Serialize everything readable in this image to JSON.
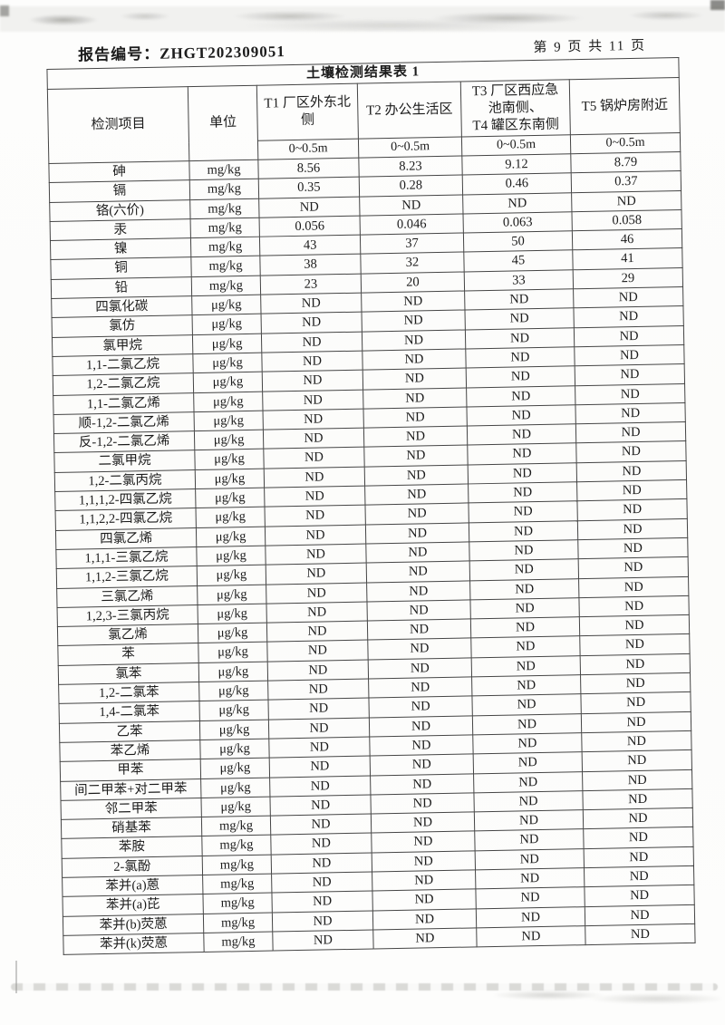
{
  "page": {
    "report_label": "报告编号：ZHGT202309051",
    "page_info": "第 9 页 共 11 页"
  },
  "table": {
    "title": "土壤检测结果表 1",
    "header": {
      "item": "检测项目",
      "unit": "单位",
      "locations": [
        "T1 厂区外东北\n侧",
        "T2 办公生活区",
        "T3 厂区西应急\n池南侧、\nT4 罐区东南侧",
        "T5 锅炉房附近"
      ],
      "depth": "0~0.5m"
    },
    "rows": [
      {
        "item": "砷",
        "unit": "mg/kg",
        "values": [
          "8.56",
          "8.23",
          "9.12",
          "8.79"
        ]
      },
      {
        "item": "镉",
        "unit": "mg/kg",
        "values": [
          "0.35",
          "0.28",
          "0.46",
          "0.37"
        ]
      },
      {
        "item": "铬(六价)",
        "unit": "mg/kg",
        "values": [
          "ND",
          "ND",
          "ND",
          "ND"
        ]
      },
      {
        "item": "汞",
        "unit": "mg/kg",
        "values": [
          "0.056",
          "0.046",
          "0.063",
          "0.058"
        ]
      },
      {
        "item": "镍",
        "unit": "mg/kg",
        "values": [
          "43",
          "37",
          "50",
          "46"
        ]
      },
      {
        "item": "铜",
        "unit": "mg/kg",
        "values": [
          "38",
          "32",
          "45",
          "41"
        ]
      },
      {
        "item": "铅",
        "unit": "mg/kg",
        "values": [
          "23",
          "20",
          "33",
          "29"
        ]
      },
      {
        "item": "四氯化碳",
        "unit": "μg/kg",
        "values": [
          "ND",
          "ND",
          "ND",
          "ND"
        ]
      },
      {
        "item": "氯仿",
        "unit": "μg/kg",
        "values": [
          "ND",
          "ND",
          "ND",
          "ND"
        ]
      },
      {
        "item": "氯甲烷",
        "unit": "μg/kg",
        "values": [
          "ND",
          "ND",
          "ND",
          "ND"
        ]
      },
      {
        "item": "1,1-二氯乙烷",
        "unit": "μg/kg",
        "values": [
          "ND",
          "ND",
          "ND",
          "ND"
        ]
      },
      {
        "item": "1,2-二氯乙烷",
        "unit": "μg/kg",
        "values": [
          "ND",
          "ND",
          "ND",
          "ND"
        ]
      },
      {
        "item": "1,1-二氯乙烯",
        "unit": "μg/kg",
        "values": [
          "ND",
          "ND",
          "ND",
          "ND"
        ]
      },
      {
        "item": "顺-1,2-二氯乙烯",
        "unit": "μg/kg",
        "values": [
          "ND",
          "ND",
          "ND",
          "ND"
        ]
      },
      {
        "item": "反-1,2-二氯乙烯",
        "unit": "μg/kg",
        "values": [
          "ND",
          "ND",
          "ND",
          "ND"
        ]
      },
      {
        "item": "二氯甲烷",
        "unit": "μg/kg",
        "values": [
          "ND",
          "ND",
          "ND",
          "ND"
        ]
      },
      {
        "item": "1,2-二氯丙烷",
        "unit": "μg/kg",
        "values": [
          "ND",
          "ND",
          "ND",
          "ND"
        ]
      },
      {
        "item": "1,1,1,2-四氯乙烷",
        "unit": "μg/kg",
        "values": [
          "ND",
          "ND",
          "ND",
          "ND"
        ]
      },
      {
        "item": "1,1,2,2-四氯乙烷",
        "unit": "μg/kg",
        "values": [
          "ND",
          "ND",
          "ND",
          "ND"
        ]
      },
      {
        "item": "四氯乙烯",
        "unit": "μg/kg",
        "values": [
          "ND",
          "ND",
          "ND",
          "ND"
        ]
      },
      {
        "item": "1,1,1-三氯乙烷",
        "unit": "μg/kg",
        "values": [
          "ND",
          "ND",
          "ND",
          "ND"
        ]
      },
      {
        "item": "1,1,2-三氯乙烷",
        "unit": "μg/kg",
        "values": [
          "ND",
          "ND",
          "ND",
          "ND"
        ]
      },
      {
        "item": "三氯乙烯",
        "unit": "μg/kg",
        "values": [
          "ND",
          "ND",
          "ND",
          "ND"
        ]
      },
      {
        "item": "1,2,3-三氯丙烷",
        "unit": "μg/kg",
        "values": [
          "ND",
          "ND",
          "ND",
          "ND"
        ]
      },
      {
        "item": "氯乙烯",
        "unit": "μg/kg",
        "values": [
          "ND",
          "ND",
          "ND",
          "ND"
        ]
      },
      {
        "item": "苯",
        "unit": "μg/kg",
        "values": [
          "ND",
          "ND",
          "ND",
          "ND"
        ]
      },
      {
        "item": "氯苯",
        "unit": "μg/kg",
        "values": [
          "ND",
          "ND",
          "ND",
          "ND"
        ]
      },
      {
        "item": "1,2-二氯苯",
        "unit": "μg/kg",
        "values": [
          "ND",
          "ND",
          "ND",
          "ND"
        ]
      },
      {
        "item": "1,4-二氯苯",
        "unit": "μg/kg",
        "values": [
          "ND",
          "ND",
          "ND",
          "ND"
        ]
      },
      {
        "item": "乙苯",
        "unit": "μg/kg",
        "values": [
          "ND",
          "ND",
          "ND",
          "ND"
        ]
      },
      {
        "item": "苯乙烯",
        "unit": "μg/kg",
        "values": [
          "ND",
          "ND",
          "ND",
          "ND"
        ]
      },
      {
        "item": "甲苯",
        "unit": "μg/kg",
        "values": [
          "ND",
          "ND",
          "ND",
          "ND"
        ]
      },
      {
        "item": "间二甲苯+对二甲苯",
        "unit": "μg/kg",
        "values": [
          "ND",
          "ND",
          "ND",
          "ND"
        ]
      },
      {
        "item": "邻二甲苯",
        "unit": "μg/kg",
        "values": [
          "ND",
          "ND",
          "ND",
          "ND"
        ]
      },
      {
        "item": "硝基苯",
        "unit": "mg/kg",
        "values": [
          "ND",
          "ND",
          "ND",
          "ND"
        ]
      },
      {
        "item": "苯胺",
        "unit": "mg/kg",
        "values": [
          "ND",
          "ND",
          "ND",
          "ND"
        ]
      },
      {
        "item": "2-氯酚",
        "unit": "mg/kg",
        "values": [
          "ND",
          "ND",
          "ND",
          "ND"
        ]
      },
      {
        "item": "苯并(a)蒽",
        "unit": "mg/kg",
        "values": [
          "ND",
          "ND",
          "ND",
          "ND"
        ]
      },
      {
        "item": "苯并(a)芘",
        "unit": "mg/kg",
        "values": [
          "ND",
          "ND",
          "ND",
          "ND"
        ]
      },
      {
        "item": "苯并(b)荧蒽",
        "unit": "mg/kg",
        "values": [
          "ND",
          "ND",
          "ND",
          "ND"
        ]
      },
      {
        "item": "苯并(k)荧蒽",
        "unit": "mg/kg",
        "values": [
          "ND",
          "ND",
          "ND",
          "ND"
        ]
      }
    ]
  }
}
